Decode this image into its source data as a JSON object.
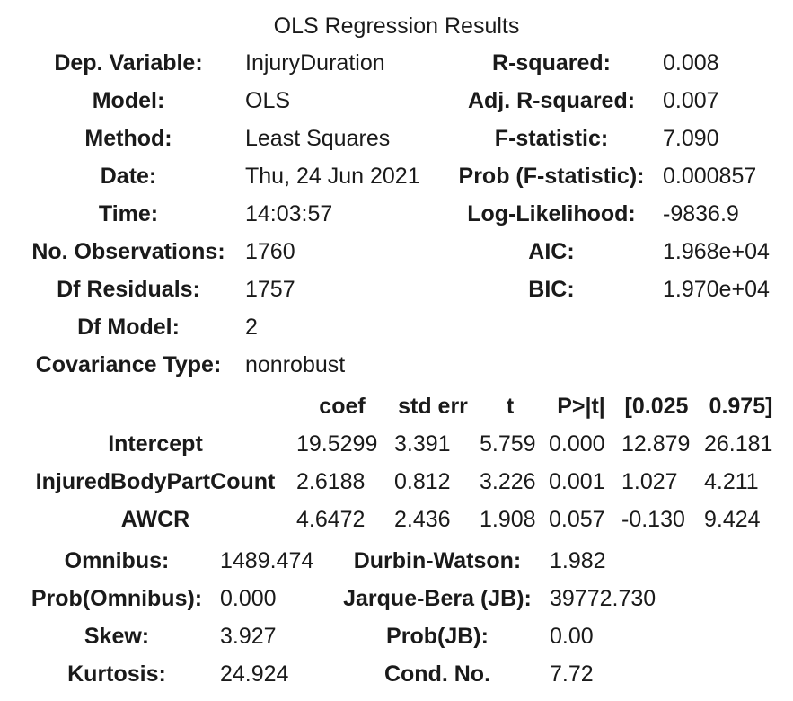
{
  "title": "OLS Regression Results",
  "summary_left": [
    {
      "label": "Dep. Variable:",
      "value": "InjuryDuration"
    },
    {
      "label": "Model:",
      "value": "OLS"
    },
    {
      "label": "Method:",
      "value": "Least Squares"
    },
    {
      "label": "Date:",
      "value": "Thu, 24 Jun 2021"
    },
    {
      "label": "Time:",
      "value": "14:03:57"
    },
    {
      "label": "No. Observations:",
      "value": "1760"
    },
    {
      "label": "Df Residuals:",
      "value": "1757"
    },
    {
      "label": "Df Model:",
      "value": "2"
    },
    {
      "label": "Covariance Type:",
      "value": "nonrobust"
    }
  ],
  "summary_right": [
    {
      "label": "R-squared:",
      "value": "0.008"
    },
    {
      "label": "Adj. R-squared:",
      "value": "0.007"
    },
    {
      "label": "F-statistic:",
      "value": "7.090"
    },
    {
      "label": "Prob (F-statistic):",
      "value": "0.000857"
    },
    {
      "label": "Log-Likelihood:",
      "value": "-9836.9"
    },
    {
      "label": "AIC:",
      "value": "1.968e+04"
    },
    {
      "label": "BIC:",
      "value": "1.970e+04"
    }
  ],
  "coef_table": {
    "headers": [
      "coef",
      "std err",
      "t",
      "P>|t|",
      "[0.025",
      "0.975]"
    ],
    "rows": [
      {
        "name": "Intercept",
        "values": [
          "19.5299",
          "3.391",
          "5.759",
          "0.000",
          "12.879",
          "26.181"
        ]
      },
      {
        "name": "InjuredBodyPartCount",
        "values": [
          "2.6188",
          "0.812",
          "3.226",
          "0.001",
          "1.027",
          "4.211"
        ]
      },
      {
        "name": "AWCR",
        "values": [
          "4.6472",
          "2.436",
          "1.908",
          "0.057",
          "-0.130",
          "9.424"
        ]
      }
    ]
  },
  "diagnostics_left": [
    {
      "label": "Omnibus:",
      "value": "1489.474"
    },
    {
      "label": "Prob(Omnibus):",
      "value": "0.000"
    },
    {
      "label": "Skew:",
      "value": "3.927"
    },
    {
      "label": "Kurtosis:",
      "value": "24.924"
    }
  ],
  "diagnostics_right": [
    {
      "label": "Durbin-Watson:",
      "value": "1.982"
    },
    {
      "label": "Jarque-Bera (JB):",
      "value": "39772.730"
    },
    {
      "label": "Prob(JB):",
      "value": "0.00"
    },
    {
      "label": "Cond. No.",
      "value": "7.72"
    }
  ]
}
